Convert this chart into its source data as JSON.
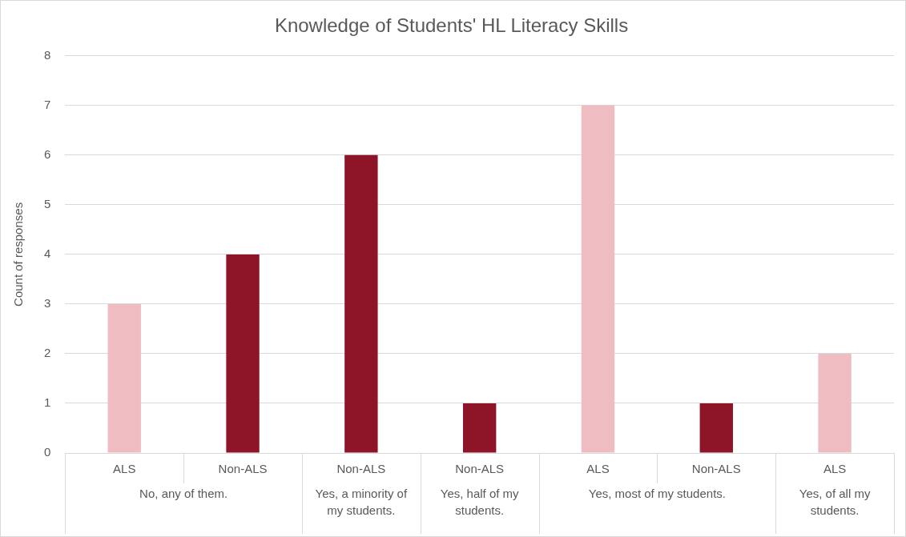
{
  "chart_data": {
    "type": "bar",
    "title": "Knowledge of Students' HL Literacy Skills",
    "ylabel": "Count of responses",
    "categories": [
      "ALS",
      "Non-ALS",
      "Non-ALS",
      "Non-ALS",
      "ALS",
      "Non-ALS",
      "ALS"
    ],
    "values": [
      3,
      4,
      6,
      1,
      7,
      1,
      2
    ],
    "colors": [
      "#efbcc2",
      "#8e1527",
      "#8e1527",
      "#8e1527",
      "#efbcc2",
      "#8e1527",
      "#efbcc2"
    ],
    "annotations": [
      "No, any of them.",
      "Yes, a minority of my students.",
      "Yes, half of my students.",
      "Yes, most of my students.",
      "Yes, of all my students."
    ],
    "ylim": [
      0,
      8
    ],
    "yticks": [
      0,
      1,
      2,
      3,
      4,
      5,
      6,
      7,
      8
    ],
    "grid": "y",
    "legend": false
  }
}
